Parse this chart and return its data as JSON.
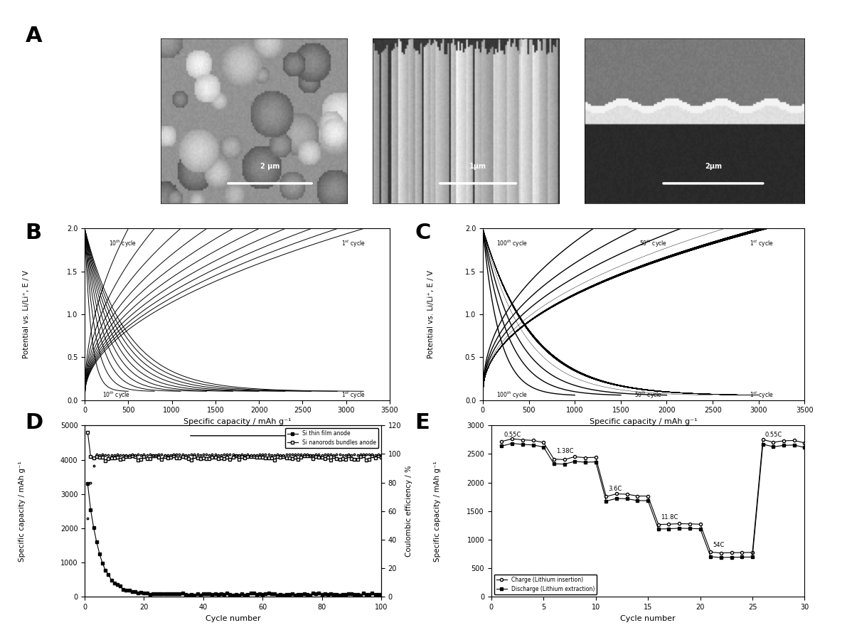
{
  "background_color": "#ffffff",
  "B": {
    "xlabel": "Specific capacity / mAh g⁻¹",
    "ylabel": "Potential vs. Li/Li⁺, E / V",
    "xlim": [
      0,
      3500
    ],
    "ylim": [
      0.0,
      2.0
    ],
    "yticks": [
      0.0,
      0.5,
      1.0,
      1.5,
      2.0
    ],
    "xticks": [
      0,
      500,
      1000,
      1500,
      2000,
      2500,
      3000,
      3500
    ]
  },
  "C": {
    "xlabel": "Specific capacity / mAh g⁻¹",
    "ylabel": "Potential vs. Li/Li⁺, E / V",
    "xlim": [
      0,
      3500
    ],
    "ylim": [
      0.0,
      2.0
    ],
    "yticks": [
      0.0,
      0.5,
      1.0,
      1.5,
      2.0
    ],
    "xticks": [
      0,
      500,
      1000,
      1500,
      2000,
      2500,
      3000,
      3500
    ]
  },
  "D": {
    "xlabel": "Cycle number",
    "ylabel_left": "Specific capacity / mAh g⁻¹",
    "ylabel_right": "Coulombic efficiency / %",
    "xlim": [
      0,
      100
    ],
    "ylim_left": [
      0,
      5000
    ],
    "ylim_right": [
      0,
      120
    ],
    "yticks_left": [
      0,
      1000,
      2000,
      3000,
      4000,
      5000
    ],
    "yticks_right": [
      0,
      20,
      40,
      60,
      80,
      100,
      120
    ],
    "xticks": [
      0,
      20,
      40,
      60,
      80,
      100
    ]
  },
  "E": {
    "xlabel": "Cycle number",
    "ylabel": "Specific capacity / mAh g⁻¹",
    "xlim": [
      0,
      30
    ],
    "ylim": [
      0,
      3000
    ],
    "yticks": [
      0,
      500,
      1000,
      1500,
      2000,
      2500,
      3000
    ],
    "xticks": [
      0,
      5,
      10,
      15,
      20,
      25,
      30
    ]
  }
}
